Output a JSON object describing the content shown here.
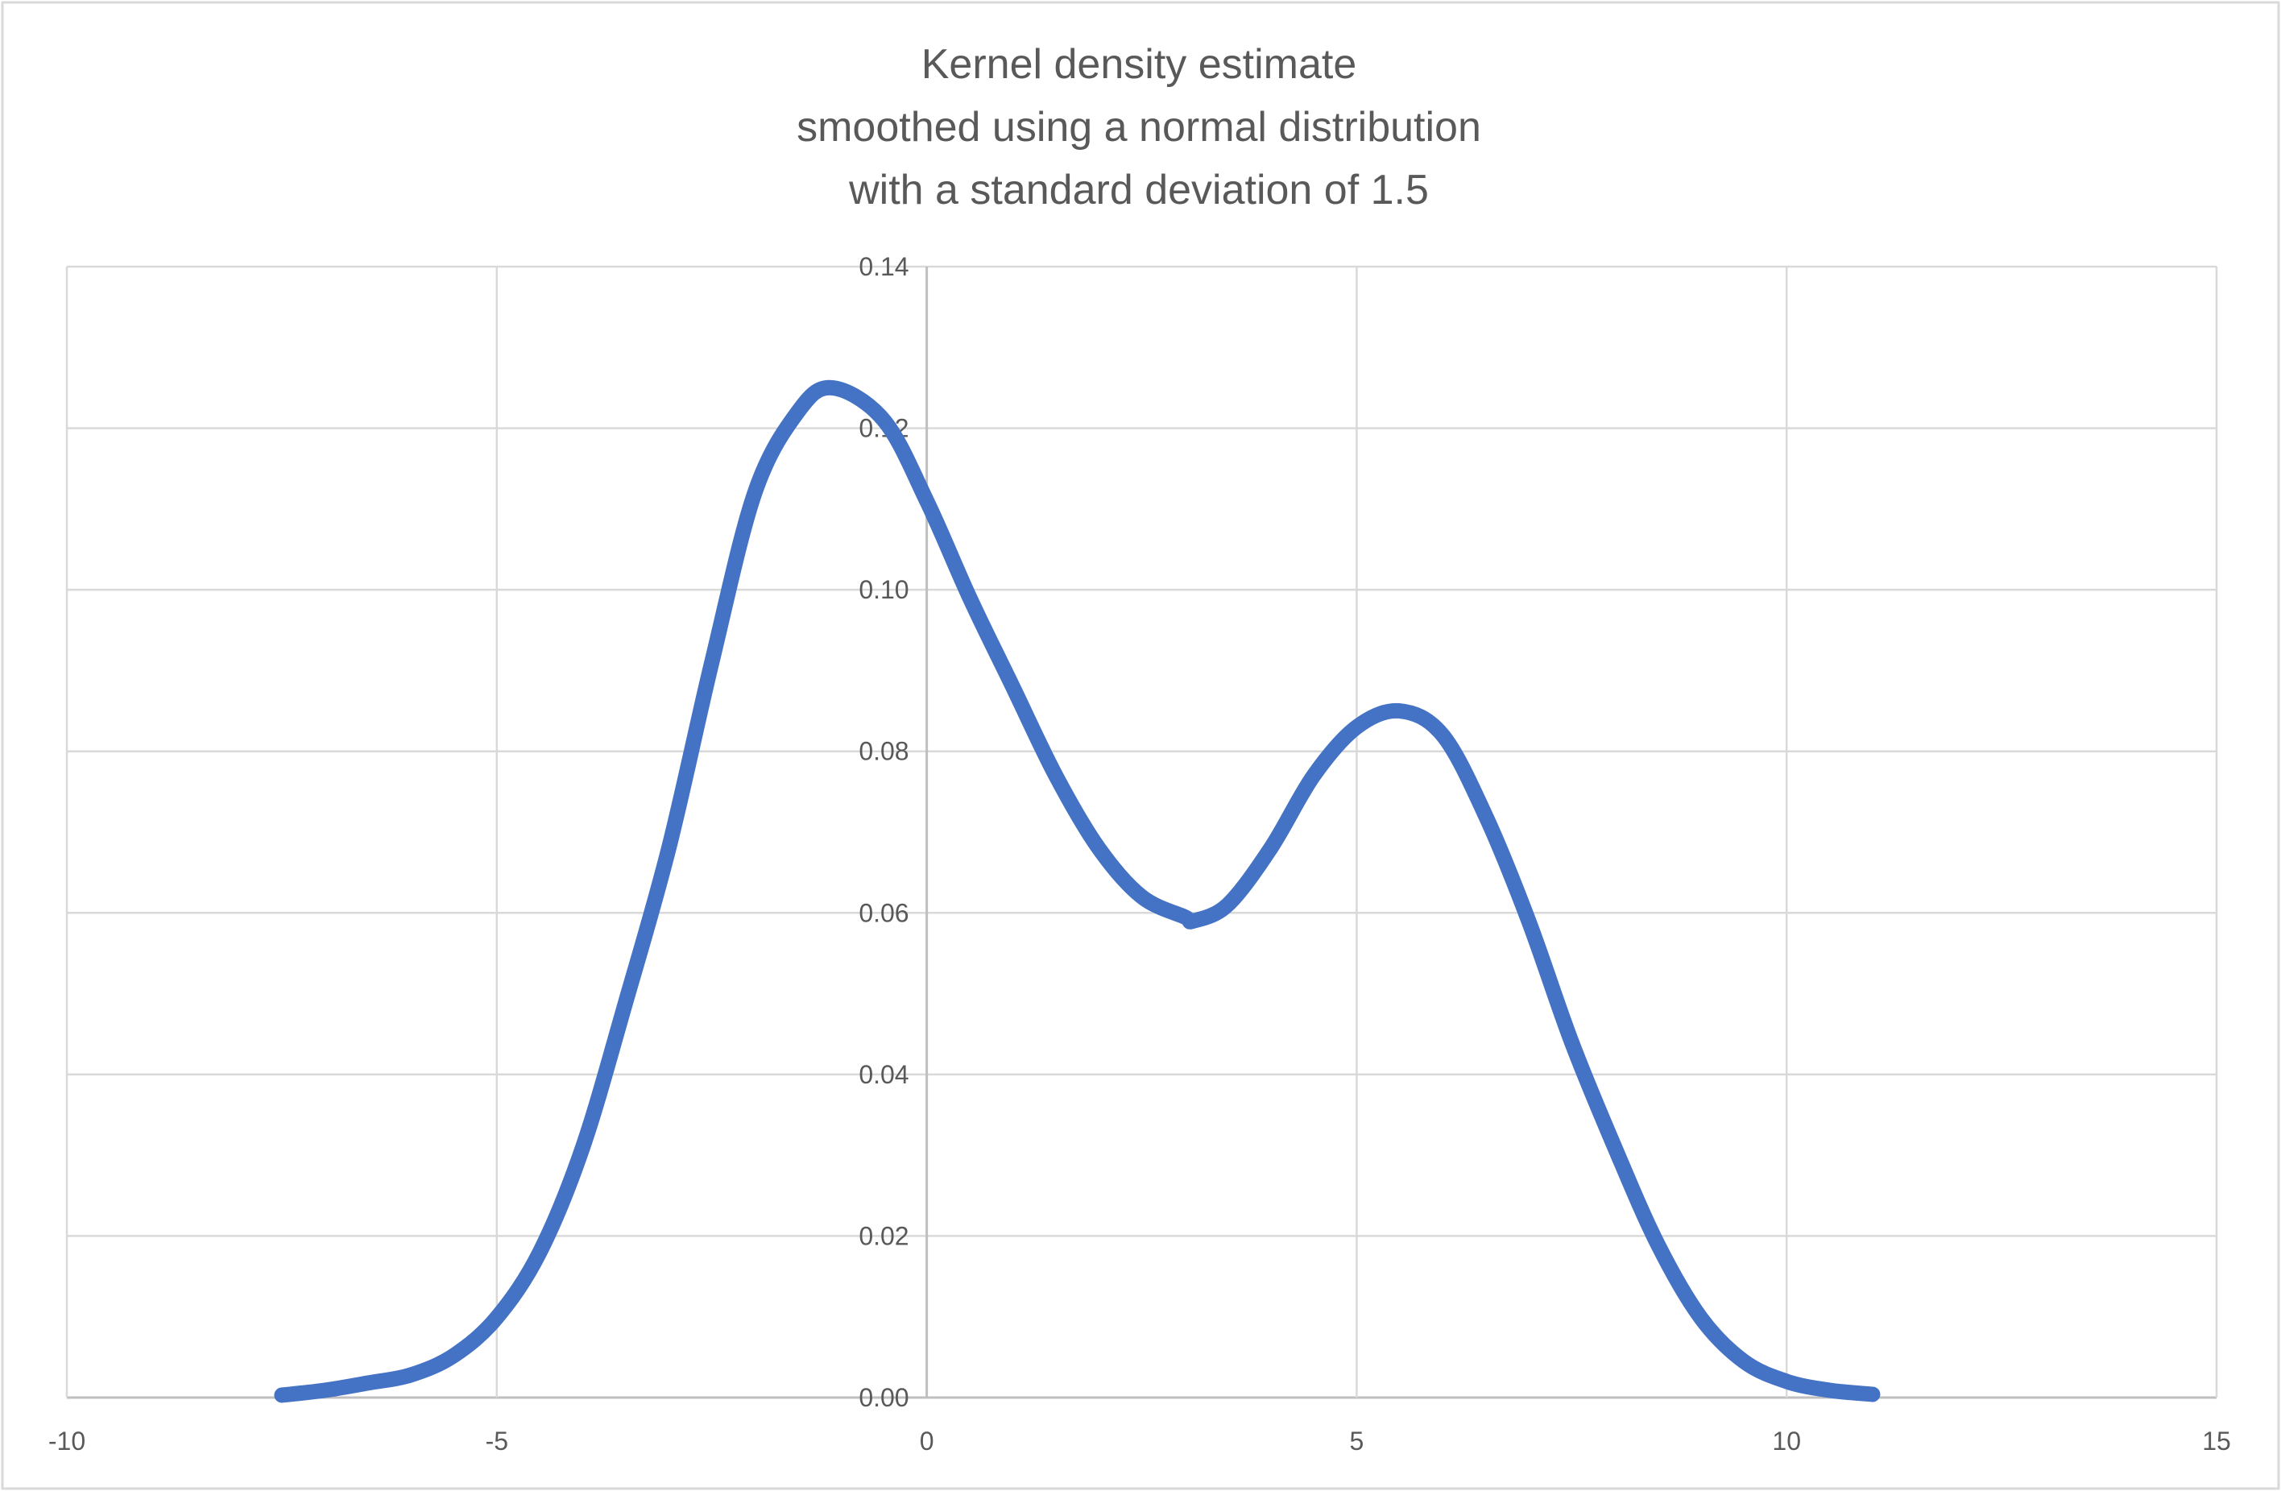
{
  "chart_data": {
    "type": "line",
    "title": [
      "Kernel density estimate",
      "smoothed using a normal distribution",
      "with a standard deviation of 1.5"
    ],
    "xlabel": "",
    "ylabel": "",
    "xlim": [
      -10,
      15
    ],
    "ylim": [
      0,
      0.14
    ],
    "x_ticks": [
      "-10",
      "-5",
      "0",
      "5",
      "10",
      "15"
    ],
    "y_ticks": [
      "0.00",
      "0.02",
      "0.04",
      "0.06",
      "0.08",
      "0.10",
      "0.12",
      "0.14"
    ],
    "grid": true,
    "legend": "none",
    "series": [
      {
        "color": "#4472C4",
        "x": [
          -7.5,
          -7,
          -6.5,
          -6,
          -5.5,
          -5,
          -4.5,
          -4,
          -3.5,
          -3,
          -2.5,
          -2,
          -1.5,
          -1.1,
          -0.5,
          0,
          0.5,
          1,
          1.5,
          2,
          2.5,
          3,
          3.1,
          3.5,
          4,
          4.5,
          5,
          5.5,
          6,
          6.5,
          7,
          7.5,
          8,
          8.5,
          9,
          9.5,
          10,
          10.5,
          11
        ],
        "y": [
          0.0003,
          0.0009,
          0.0018,
          0.0028,
          0.0052,
          0.0099,
          0.018,
          0.031,
          0.049,
          0.068,
          0.091,
          0.112,
          0.122,
          0.125,
          0.121,
          0.111,
          0.099,
          0.088,
          0.077,
          0.068,
          0.062,
          0.0595,
          0.059,
          0.061,
          0.068,
          0.077,
          0.083,
          0.085,
          0.082,
          0.072,
          0.059,
          0.044,
          0.031,
          0.019,
          0.0099,
          0.0045,
          0.002,
          0.0009,
          0.0004
        ]
      }
    ]
  }
}
